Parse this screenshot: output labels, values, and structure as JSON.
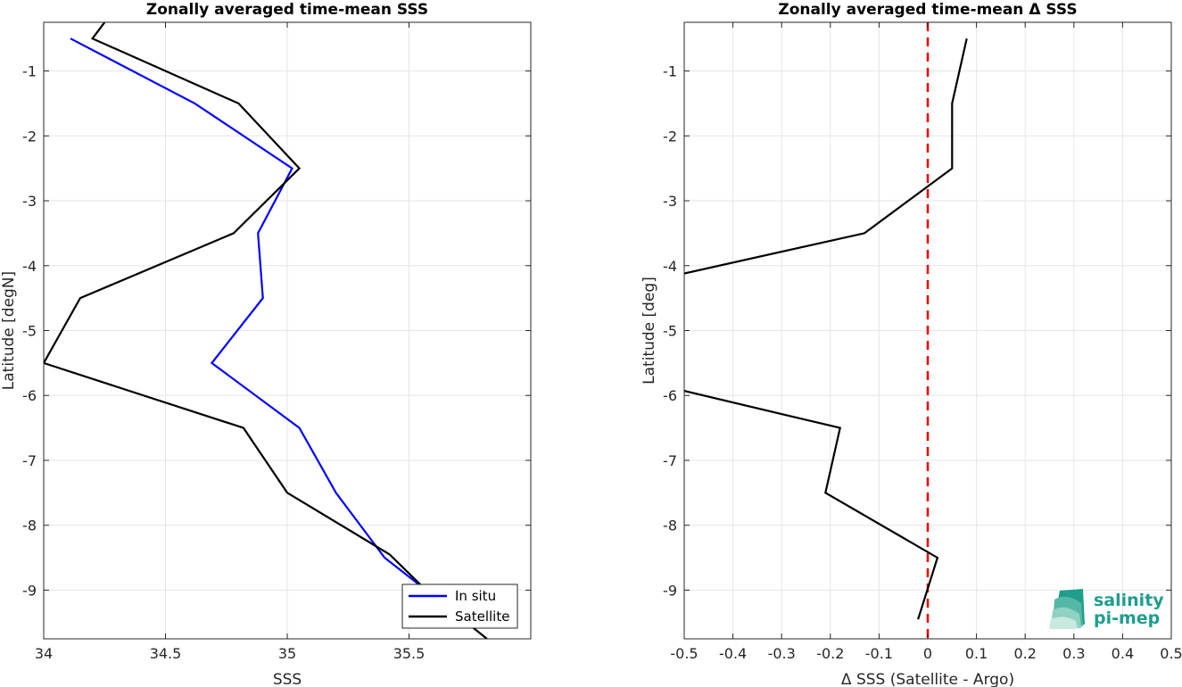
{
  "chart_data": [
    {
      "type": "line",
      "title": "Zonally averaged time-mean SSS",
      "xlabel": "SSS",
      "ylabel": "Latitude [degN]",
      "xlim": [
        34.0,
        36.0
      ],
      "ylim": [
        -9.75,
        -0.25
      ],
      "xticks": [
        34,
        34.5,
        35,
        35.5
      ],
      "xtick_labels": [
        "34",
        "34.5",
        "35",
        "35.5"
      ],
      "yticks": [
        -1,
        -2,
        -3,
        -4,
        -5,
        -6,
        -7,
        -8,
        -9
      ],
      "ytick_labels": [
        "-1",
        "-2",
        "-3",
        "-4",
        "-5",
        "-6",
        "-7",
        "-8",
        "-9"
      ],
      "grid": true,
      "legend": "bottom-right",
      "series": [
        {
          "name": "In situ",
          "color": "#0000ff",
          "x": [
            34.11,
            34.62,
            35.02,
            34.88,
            34.9,
            34.69,
            35.05,
            35.2,
            35.4,
            35.57
          ],
          "y": [
            -0.5,
            -1.5,
            -2.5,
            -3.5,
            -4.5,
            -5.5,
            -6.5,
            -7.5,
            -8.5,
            -9.0
          ]
        },
        {
          "name": "Satellite",
          "color": "#000000",
          "x": [
            34.26,
            34.2,
            34.8,
            35.05,
            34.78,
            34.15,
            34.0,
            34.82,
            35.0,
            35.42,
            35.57,
            35.82
          ],
          "y": [
            -0.2,
            -0.5,
            -1.5,
            -2.5,
            -3.5,
            -4.5,
            -5.5,
            -6.5,
            -7.5,
            -8.45,
            -9.0,
            -9.75
          ]
        }
      ]
    },
    {
      "type": "line",
      "title": "Zonally averaged time-mean Δ SSS",
      "xlabel": "Δ SSS (Satellite - Argo)",
      "ylabel": "Latitude [deg]",
      "xlim": [
        -0.5,
        0.5
      ],
      "ylim": [
        -9.75,
        -0.25
      ],
      "xticks": [
        -0.5,
        -0.4,
        -0.3,
        -0.2,
        -0.1,
        0,
        0.1,
        0.2,
        0.3,
        0.4,
        0.5
      ],
      "xtick_labels": [
        "-0.5",
        "-0.4",
        "-0.3",
        "-0.2",
        "-0.1",
        "0",
        "0.1",
        "0.2",
        "0.3",
        "0.4",
        "0.5"
      ],
      "yticks": [
        -1,
        -2,
        -3,
        -4,
        -5,
        -6,
        -7,
        -8,
        -9
      ],
      "ytick_labels": [
        "-1",
        "-2",
        "-3",
        "-4",
        "-5",
        "-6",
        "-7",
        "-8",
        "-9"
      ],
      "grid": true,
      "reference_line": {
        "x": 0,
        "color": "#ee0000",
        "style": "dashed"
      },
      "series": [
        {
          "color": "#000000",
          "x": [
            0.08,
            0.05,
            0.05,
            -0.13,
            -0.5
          ],
          "y": [
            -0.5,
            -1.5,
            -2.5,
            -3.5,
            -4.12
          ]
        },
        {
          "color": "#000000",
          "x": [
            -0.5,
            -0.18,
            -0.21,
            0.02,
            -0.02
          ],
          "y": [
            -5.93,
            -6.5,
            -7.5,
            -8.5,
            -9.45
          ]
        }
      ]
    }
  ],
  "logo": {
    "line1": "salinity",
    "line2": "pi-mep",
    "color": "#1f9e8c"
  }
}
